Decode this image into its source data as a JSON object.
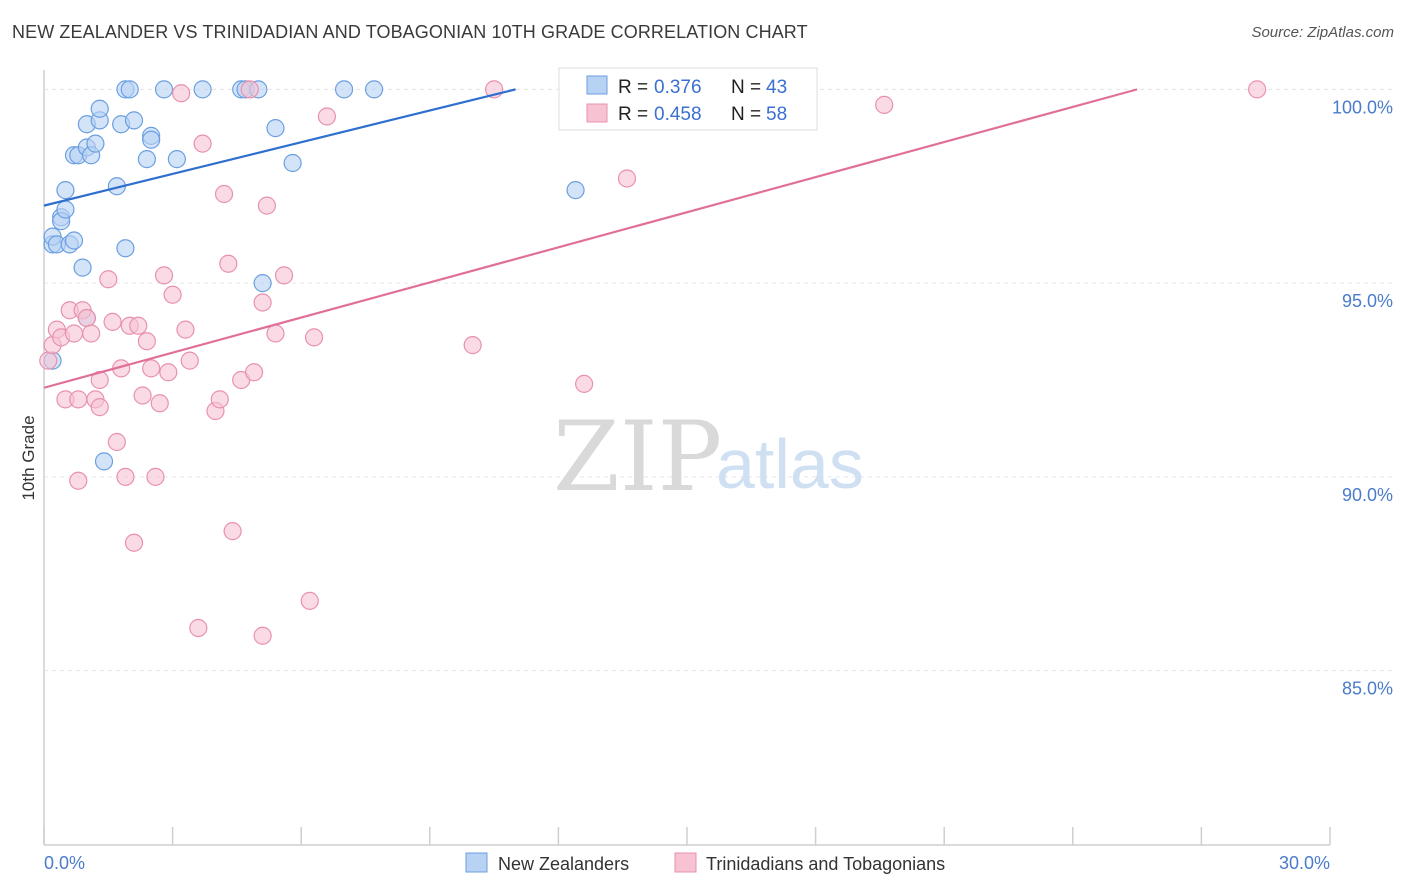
{
  "title": "NEW ZEALANDER VS TRINIDADIAN AND TOBAGONIAN 10TH GRADE CORRELATION CHART",
  "source": "Source: ZipAtlas.com",
  "watermark": {
    "zip": "ZIP",
    "atlas": "atlas"
  },
  "colors": {
    "blue_fill": "#b8d2f3",
    "blue_stroke": "#6b9fe0",
    "blue_line": "#2f6fce",
    "pink_fill": "#f7c3d3",
    "pink_stroke": "#e891ad",
    "pink_line": "#e0709a",
    "tick_text": "#4a7cc9",
    "grid": "#e6e6e6"
  },
  "legend": {
    "entries": [
      {
        "r_label": "R =",
        "r_value": "0.376",
        "n_label": "N =",
        "n_value": "43",
        "color": "blue"
      },
      {
        "r_label": "R =",
        "r_value": "0.458",
        "n_label": "N =",
        "n_value": "58",
        "color": "pink"
      }
    ]
  },
  "bottom_legend": [
    "New Zealanders",
    "Trinidadians and Tobagonians"
  ],
  "chart_data": {
    "type": "scatter",
    "title": "NEW ZEALANDER VS TRINIDADIAN AND TOBAGONIAN 10TH GRADE CORRELATION CHART",
    "xlabel": "",
    "ylabel": "10th Grade",
    "xlim": [
      0,
      30
    ],
    "ylim": [
      80.5,
      100.5
    ],
    "x_tick_labels": [
      "0.0%",
      "30.0%"
    ],
    "y_ticks": [
      85,
      90,
      95,
      100
    ],
    "y_tick_labels": [
      "85.0%",
      "90.0%",
      "95.0%",
      "100.0%"
    ],
    "grid": "horizontal dashed",
    "legend_placement": "top-center",
    "series": [
      {
        "name": "New Zealanders",
        "color": "blue",
        "R": 0.376,
        "N": 43,
        "trend": {
          "x": [
            0,
            11
          ],
          "y": [
            97.0,
            100.0
          ]
        },
        "points": [
          [
            0.2,
            93.0
          ],
          [
            0.2,
            96.0
          ],
          [
            0.2,
            96.2
          ],
          [
            0.3,
            96.0
          ],
          [
            0.4,
            96.7
          ],
          [
            0.4,
            96.6
          ],
          [
            0.5,
            96.9
          ],
          [
            0.5,
            97.4
          ],
          [
            0.6,
            96.0
          ],
          [
            0.7,
            96.1
          ],
          [
            0.7,
            98.3
          ],
          [
            0.8,
            98.3
          ],
          [
            0.9,
            95.4
          ],
          [
            1.0,
            94.1
          ],
          [
            1.0,
            98.5
          ],
          [
            1.0,
            99.1
          ],
          [
            1.1,
            98.3
          ],
          [
            1.2,
            98.6
          ],
          [
            1.3,
            99.2
          ],
          [
            1.3,
            99.5
          ],
          [
            1.4,
            90.4
          ],
          [
            1.7,
            97.5
          ],
          [
            1.8,
            99.1
          ],
          [
            1.9,
            95.9
          ],
          [
            1.9,
            100.0
          ],
          [
            2.0,
            100.0
          ],
          [
            2.1,
            99.2
          ],
          [
            2.4,
            98.2
          ],
          [
            2.5,
            98.8
          ],
          [
            2.5,
            98.7
          ],
          [
            2.8,
            100.0
          ],
          [
            3.1,
            98.2
          ],
          [
            3.7,
            100.0
          ],
          [
            4.6,
            100.0
          ],
          [
            4.7,
            100.0
          ],
          [
            5.0,
            100.0
          ],
          [
            5.1,
            95.0
          ],
          [
            5.4,
            99.0
          ],
          [
            5.8,
            98.1
          ],
          [
            7.0,
            100.0
          ],
          [
            7.7,
            100.0
          ],
          [
            12.4,
            97.4
          ],
          [
            12.5,
            100.0
          ]
        ]
      },
      {
        "name": "Trinidadians and Tobagonians",
        "color": "pink",
        "R": 0.458,
        "N": 58,
        "trend": {
          "x": [
            0,
            25.5
          ],
          "y": [
            92.3,
            100.0
          ]
        },
        "points": [
          [
            0.1,
            93.0
          ],
          [
            0.2,
            93.4
          ],
          [
            0.3,
            93.8
          ],
          [
            0.4,
            93.6
          ],
          [
            0.5,
            92.0
          ],
          [
            0.6,
            94.3
          ],
          [
            0.7,
            93.7
          ],
          [
            0.8,
            92.0
          ],
          [
            0.8,
            89.9
          ],
          [
            0.9,
            94.3
          ],
          [
            1.0,
            94.1
          ],
          [
            1.1,
            93.7
          ],
          [
            1.2,
            92.0
          ],
          [
            1.3,
            91.8
          ],
          [
            1.3,
            92.5
          ],
          [
            1.5,
            95.1
          ],
          [
            1.6,
            94.0
          ],
          [
            1.7,
            90.9
          ],
          [
            1.8,
            92.8
          ],
          [
            1.9,
            90.0
          ],
          [
            2.0,
            93.9
          ],
          [
            2.1,
            88.3
          ],
          [
            2.2,
            93.9
          ],
          [
            2.3,
            92.1
          ],
          [
            2.4,
            93.5
          ],
          [
            2.5,
            92.8
          ],
          [
            2.6,
            90.0
          ],
          [
            2.7,
            91.9
          ],
          [
            2.8,
            95.2
          ],
          [
            2.9,
            92.7
          ],
          [
            3.0,
            94.7
          ],
          [
            3.2,
            99.9
          ],
          [
            3.3,
            93.8
          ],
          [
            3.4,
            93.0
          ],
          [
            3.6,
            86.1
          ],
          [
            3.7,
            98.6
          ],
          [
            4.0,
            91.7
          ],
          [
            4.1,
            92.0
          ],
          [
            4.2,
            97.3
          ],
          [
            4.3,
            95.5
          ],
          [
            4.4,
            88.6
          ],
          [
            4.6,
            92.5
          ],
          [
            4.8,
            100.0
          ],
          [
            4.9,
            92.7
          ],
          [
            5.1,
            85.9
          ],
          [
            5.1,
            94.5
          ],
          [
            5.2,
            97.0
          ],
          [
            5.4,
            93.7
          ],
          [
            5.6,
            95.2
          ],
          [
            6.2,
            86.8
          ],
          [
            6.3,
            93.6
          ],
          [
            6.6,
            99.3
          ],
          [
            10.0,
            93.4
          ],
          [
            10.5,
            100.0
          ],
          [
            12.6,
            92.4
          ],
          [
            13.6,
            97.7
          ],
          [
            19.6,
            99.6
          ],
          [
            28.3,
            100.0
          ]
        ]
      }
    ]
  }
}
